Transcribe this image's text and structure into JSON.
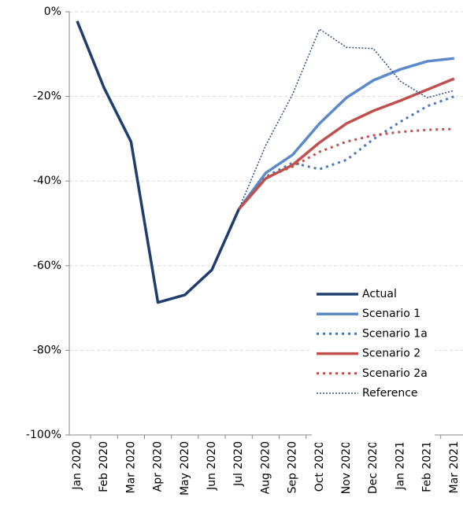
{
  "chart_data": {
    "type": "line",
    "categories": [
      "Jan 2020",
      "Feb 2020",
      "Mar 2020",
      "Apr 2020",
      "May 2020",
      "Jun 2020",
      "Jul 2020",
      "Aug 2020",
      "Sep 2020",
      "Oct 2020",
      "Nov 2020",
      "Dec 2020",
      "Jan 2021",
      "Feb 2021",
      "Mar 2021"
    ],
    "series": [
      {
        "name": "Actual",
        "color": "#1f3e6e",
        "style": "solid",
        "values": [
          -2.2,
          -18,
          -30.7,
          -68.7,
          -66.9,
          -61,
          -46.7,
          null,
          null,
          null,
          null,
          null,
          null,
          null,
          null
        ]
      },
      {
        "name": "Scenario 1",
        "color": "#5b8ac9",
        "style": "solid",
        "values": [
          null,
          null,
          null,
          null,
          null,
          null,
          -46.7,
          -38.1,
          -33.8,
          -26.4,
          -20.3,
          -16.2,
          -13.6,
          -11.7,
          -11
        ]
      },
      {
        "name": "Scenario 1a",
        "color": "#4a78b8",
        "style": "dotted",
        "values": [
          null,
          null,
          null,
          null,
          null,
          null,
          -46.7,
          -39,
          -35.7,
          -37.2,
          -35,
          -30.1,
          -26,
          -22.3,
          -20
        ]
      },
      {
        "name": "Scenario 2",
        "color": "#c0504d",
        "style": "solid",
        "values": [
          null,
          null,
          null,
          null,
          null,
          null,
          -46.7,
          -39.4,
          -36.2,
          -30.9,
          -26.4,
          -23.4,
          -21,
          -18.4,
          -15.8
        ]
      },
      {
        "name": "Scenario 2a",
        "color": "#c0504d",
        "style": "dotted",
        "values": [
          null,
          null,
          null,
          null,
          null,
          null,
          -46.7,
          -39.2,
          -36.6,
          -33.1,
          -30.7,
          -29.2,
          -28.4,
          -27.9,
          -27.7
        ]
      },
      {
        "name": "Reference",
        "color": "#2e4e80",
        "style": "fine-dotted",
        "values": [
          null,
          null,
          null,
          null,
          null,
          null,
          -46.7,
          -31.6,
          -19.5,
          -4.1,
          -8.4,
          -8.7,
          -16.4,
          -20.3,
          -18.6
        ]
      }
    ],
    "ylim": [
      -100,
      0
    ],
    "yticks": [
      {
        "value": -100,
        "label": "-100%"
      },
      {
        "value": -80,
        "label": "-80%"
      },
      {
        "value": -60,
        "label": "-60%"
      },
      {
        "value": -40,
        "label": "-40%"
      },
      {
        "value": -20,
        "label": "-20%"
      },
      {
        "value": 0,
        "label": "0%"
      }
    ],
    "grid": true,
    "legend": "lower right"
  }
}
